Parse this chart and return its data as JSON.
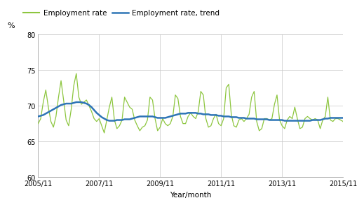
{
  "ylabel": "%",
  "xlabel": "Year/month",
  "ylim": [
    60,
    80
  ],
  "yticks": [
    60,
    65,
    70,
    75,
    80
  ],
  "xtick_labels": [
    "2005/11",
    "2007/11",
    "2009/11",
    "2011/11",
    "2013/11",
    "2015/11"
  ],
  "employment_rate_color": "#8dc63f",
  "trend_color": "#2e75b6",
  "legend_labels": [
    "Employment rate",
    "Employment rate, trend"
  ],
  "background_color": "#ffffff",
  "grid_color": "#c8c8c8",
  "employment_rate": [
    67.5,
    68.2,
    70.5,
    72.2,
    69.8,
    67.8,
    67.0,
    68.5,
    71.2,
    73.5,
    70.8,
    68.0,
    67.2,
    69.5,
    72.8,
    74.5,
    71.2,
    70.2,
    70.5,
    70.8,
    70.0,
    69.2,
    68.2,
    67.8,
    68.2,
    67.2,
    66.2,
    68.0,
    69.8,
    71.2,
    68.0,
    66.8,
    67.2,
    68.0,
    71.2,
    70.5,
    69.8,
    69.5,
    68.0,
    67.2,
    66.5,
    67.0,
    67.2,
    68.0,
    71.2,
    70.8,
    68.2,
    66.5,
    67.0,
    68.2,
    67.5,
    67.2,
    67.5,
    68.5,
    71.5,
    71.0,
    68.5,
    67.5,
    67.5,
    68.5,
    69.0,
    68.5,
    68.2,
    69.2,
    72.0,
    71.5,
    68.2,
    67.0,
    67.2,
    68.2,
    68.8,
    67.5,
    67.2,
    68.2,
    72.5,
    73.0,
    68.8,
    67.2,
    67.0,
    68.0,
    68.2,
    67.8,
    68.2,
    68.8,
    71.2,
    72.0,
    67.8,
    66.5,
    66.8,
    68.2,
    68.2,
    68.0,
    68.2,
    70.2,
    71.5,
    68.0,
    67.2,
    66.8,
    68.0,
    68.5,
    68.2,
    69.8,
    68.2,
    66.8,
    67.0,
    68.2,
    68.5,
    68.2,
    68.0,
    68.2,
    68.0,
    66.8,
    68.0,
    68.5,
    71.2,
    68.0,
    67.8,
    68.2,
    68.2,
    68.0,
    67.8,
    66.8
  ],
  "trend": [
    68.5,
    68.6,
    68.7,
    68.9,
    69.1,
    69.3,
    69.5,
    69.7,
    69.9,
    70.1,
    70.2,
    70.3,
    70.3,
    70.3,
    70.4,
    70.5,
    70.5,
    70.5,
    70.4,
    70.3,
    70.1,
    69.8,
    69.4,
    69.0,
    68.7,
    68.4,
    68.2,
    68.0,
    67.9,
    67.9,
    67.9,
    68.0,
    68.0,
    68.0,
    68.1,
    68.1,
    68.1,
    68.2,
    68.3,
    68.4,
    68.5,
    68.5,
    68.5,
    68.5,
    68.5,
    68.5,
    68.4,
    68.3,
    68.3,
    68.3,
    68.3,
    68.4,
    68.5,
    68.6,
    68.7,
    68.8,
    68.9,
    68.9,
    68.9,
    69.0,
    69.0,
    69.0,
    69.0,
    68.9,
    68.9,
    68.8,
    68.8,
    68.8,
    68.7,
    68.7,
    68.7,
    68.6,
    68.6,
    68.5,
    68.5,
    68.5,
    68.4,
    68.4,
    68.4,
    68.3,
    68.3,
    68.3,
    68.2,
    68.2,
    68.2,
    68.2,
    68.1,
    68.1,
    68.1,
    68.1,
    68.1,
    68.0,
    68.0,
    68.0,
    68.0,
    68.0,
    68.0,
    67.9,
    67.9,
    67.9,
    67.9,
    67.9,
    67.9,
    67.9,
    67.9,
    67.9,
    67.9,
    67.9,
    68.0,
    68.0,
    68.0,
    68.0,
    68.1,
    68.2,
    68.2,
    68.3,
    68.3,
    68.3,
    68.3,
    68.3,
    68.3,
    68.3
  ]
}
